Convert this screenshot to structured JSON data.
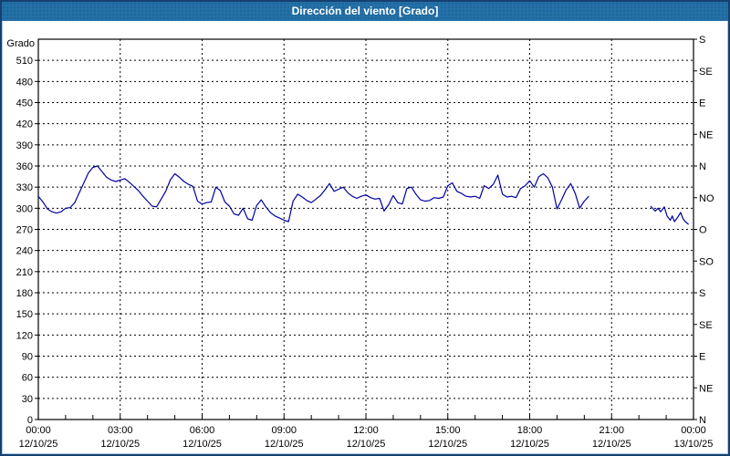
{
  "window": {
    "title": "Dirección del viento [Grado]"
  },
  "colors": {
    "title_bar_bg": "#2470a8",
    "title_text": "#ffffff",
    "window_border": "#15406f",
    "plot_background": "#ffffff",
    "grid": "#000000",
    "axis": "#000000",
    "series_line": "#0000a0",
    "label_text": "#000000"
  },
  "chart_data": {
    "type": "line",
    "title": "Dirección del viento [Grado]",
    "ylabel": "Grado",
    "grid": "dashed",
    "y_axis": {
      "min": 0,
      "max": 540,
      "grid_step": 30,
      "left_tick_values": [
        510,
        480,
        450,
        420,
        390,
        360,
        330,
        300,
        270,
        240,
        210,
        180,
        150,
        120,
        90,
        60,
        30,
        0
      ],
      "right_ticks": [
        {
          "value": 540,
          "label": "S"
        },
        {
          "value": 495,
          "label": "SE"
        },
        {
          "value": 450,
          "label": "E"
        },
        {
          "value": 405,
          "label": "NE"
        },
        {
          "value": 360,
          "label": "N"
        },
        {
          "value": 315,
          "label": "NO"
        },
        {
          "value": 270,
          "label": "O"
        },
        {
          "value": 225,
          "label": "SO"
        },
        {
          "value": 180,
          "label": "S"
        },
        {
          "value": 135,
          "label": "SE"
        },
        {
          "value": 90,
          "label": "E"
        },
        {
          "value": 45,
          "label": "NE"
        },
        {
          "value": 0,
          "label": "N"
        }
      ]
    },
    "x_axis": {
      "min_hour": 0,
      "max_hour": 24,
      "major_step_hours": 3,
      "minor_step_hours": 1,
      "ticks": [
        {
          "hour": 0,
          "time": "00:00",
          "date": "12/10/25"
        },
        {
          "hour": 3,
          "time": "03:00",
          "date": "12/10/25"
        },
        {
          "hour": 6,
          "time": "06:00",
          "date": "12/10/25"
        },
        {
          "hour": 9,
          "time": "09:00",
          "date": "12/10/25"
        },
        {
          "hour": 12,
          "time": "12:00",
          "date": "12/10/25"
        },
        {
          "hour": 15,
          "time": "15:00",
          "date": "12/10/25"
        },
        {
          "hour": 18,
          "time": "18:00",
          "date": "12/10/25"
        },
        {
          "hour": 21,
          "time": "21:00",
          "date": "12/10/25"
        },
        {
          "hour": 24,
          "time": "00:00",
          "date": "13/10/25"
        }
      ]
    },
    "series": [
      {
        "name": "Dirección del viento",
        "unit": "Grado",
        "color": "#0000a0",
        "segments": [
          {
            "start_hour": 0,
            "step_minutes": 10,
            "values": [
              317,
              309,
              299,
              295,
              293,
              295,
              300,
              301,
              308,
              322,
              336,
              350,
              358,
              360,
              352,
              344,
              340,
              338,
              340,
              342,
              337,
              331,
              325,
              317,
              310,
              303,
              302,
              313,
              324,
              340,
              349,
              344,
              338,
              334,
              331,
              310,
              306,
              308,
              309,
              330,
              325,
              309,
              303,
              292,
              290,
              300,
              285,
              283,
              304,
              312,
              302,
              294,
              289,
              286,
              283,
              281,
              310,
              320,
              316,
              311,
              308,
              313,
              318,
              326,
              335,
              324,
              327,
              330,
              322,
              317,
              314,
              317,
              319,
              315,
              313,
              314,
              296,
              305,
              318,
              308,
              306,
              328,
              330,
              320,
              312,
              310,
              311,
              315,
              314,
              316,
              332,
              336,
              324,
              321,
              317,
              316,
              317,
              314,
              332,
              328,
              334,
              347,
              320,
              316,
              317,
              315,
              328,
              332,
              339,
              330,
              345,
              349,
              343,
              330,
              299,
              312,
              326,
              335,
              321,
              300,
              310,
              317
            ]
          },
          {
            "points": [
              [
                22.43,
                303
              ],
              [
                22.6,
                296
              ],
              [
                22.7,
                300
              ],
              [
                22.8,
                295
              ],
              [
                22.93,
                302
              ],
              [
                23.03,
                289
              ],
              [
                23.15,
                283
              ],
              [
                23.22,
                289
              ],
              [
                23.3,
                281
              ],
              [
                23.42,
                287
              ],
              [
                23.53,
                294
              ],
              [
                23.62,
                285
              ],
              [
                23.7,
                281
              ],
              [
                23.82,
                277
              ]
            ]
          }
        ]
      }
    ]
  }
}
